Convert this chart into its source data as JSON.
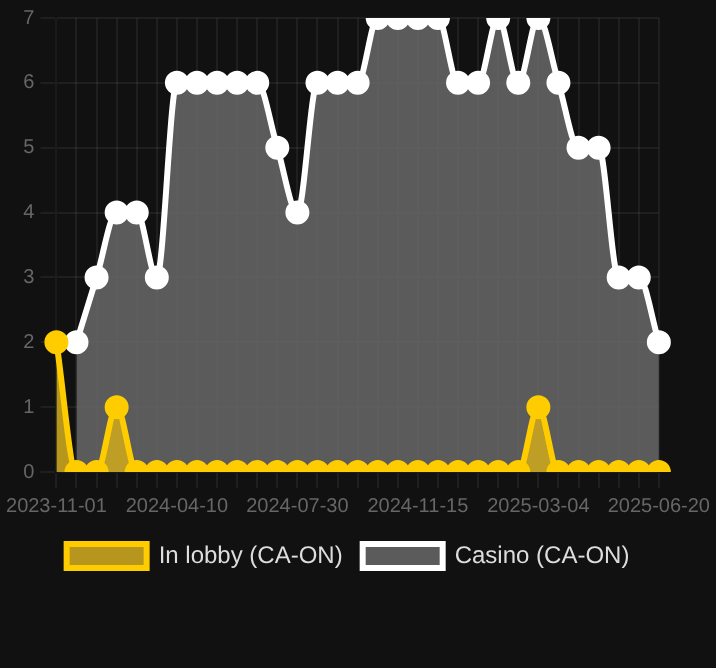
{
  "chart_data": {
    "type": "area",
    "categories": [
      "2023-11-01",
      null,
      null,
      null,
      null,
      null,
      "2024-04-10",
      null,
      null,
      null,
      null,
      null,
      "2024-07-30",
      null,
      null,
      null,
      null,
      null,
      "2024-11-15",
      null,
      null,
      null,
      null,
      null,
      "2025-03-04",
      null,
      null,
      null,
      null,
      null,
      "2025-06-20"
    ],
    "series": [
      {
        "name": "In lobby (CA-ON)",
        "color": "#ffcc00",
        "values": [
          2,
          0,
          0,
          1,
          0,
          0,
          0,
          0,
          0,
          0,
          0,
          0,
          0,
          0,
          0,
          0,
          0,
          0,
          0,
          0,
          0,
          0,
          0,
          0,
          1,
          0,
          0,
          0,
          0,
          0,
          0
        ]
      },
      {
        "name": "Casino (CA-ON)",
        "color": "#ffffff",
        "values": [
          null,
          2,
          3,
          4,
          4,
          3,
          6,
          6,
          6,
          6,
          6,
          5,
          4,
          6,
          6,
          6,
          7,
          7,
          7,
          7,
          6,
          6,
          7,
          6,
          7,
          6,
          5,
          5,
          3,
          3,
          2
        ]
      }
    ],
    "ylim": [
      0,
      7
    ],
    "yticks": [
      0,
      1,
      2,
      3,
      4,
      5,
      6,
      7
    ],
    "grid": true,
    "legend": "bottom",
    "marker": "circle"
  }
}
